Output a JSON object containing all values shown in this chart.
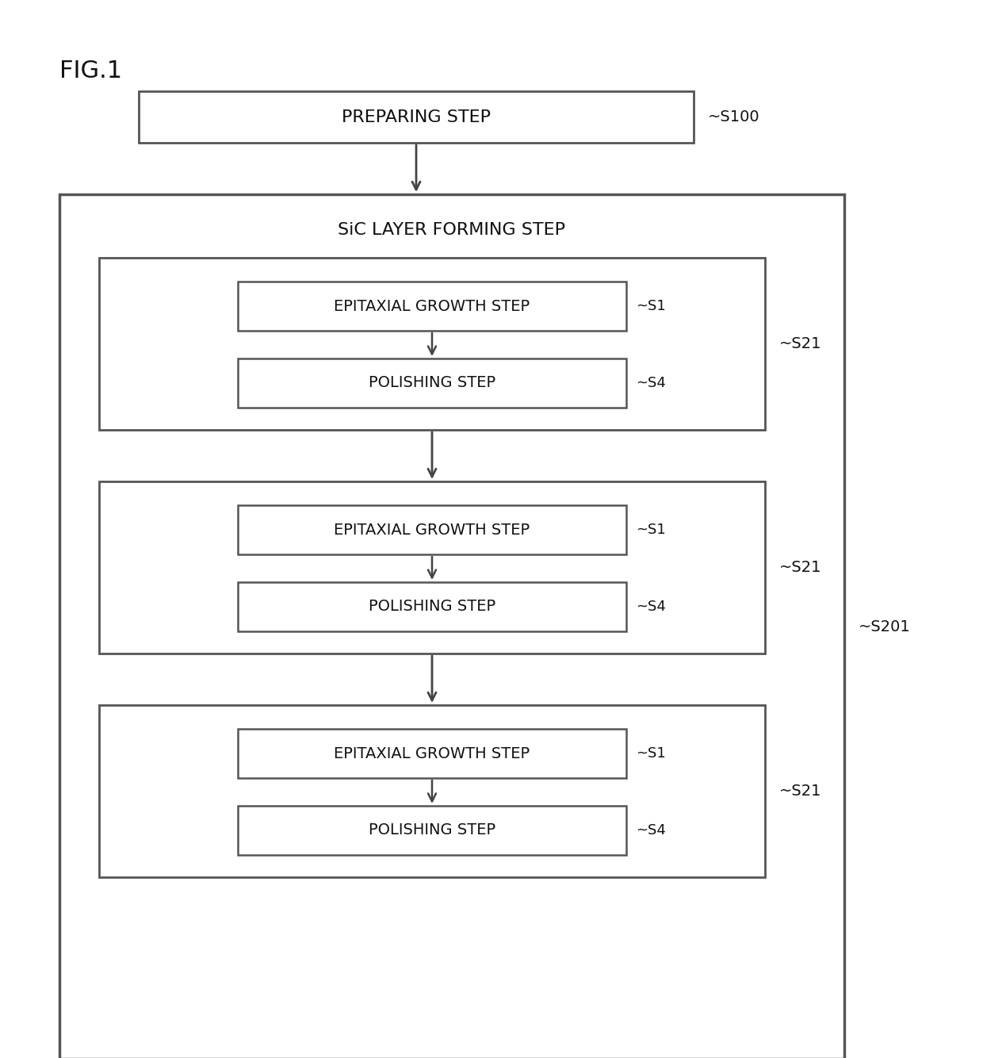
{
  "bg_color": "#ffffff",
  "box_edge_color": "#555555",
  "box_fill_color": "#ffffff",
  "text_color": "#111111",
  "arrow_color": "#444444",
  "fig_label": "FIG.1",
  "preparing_step_label": "PREPARING STEP",
  "preparing_step_ref": "~S100",
  "sic_layer_label": "SiC LAYER FORMING STEP",
  "sic_layer_ref": "~S201",
  "epitaxial_label": "EPITAXIAL GROWTH STEP",
  "polishing_label": "POLISHING STEP",
  "s1_ref": "~S1",
  "s4_ref": "~S4",
  "s21_ref": "~S21",
  "figsize": [
    12.4,
    13.34
  ],
  "dpi": 100
}
